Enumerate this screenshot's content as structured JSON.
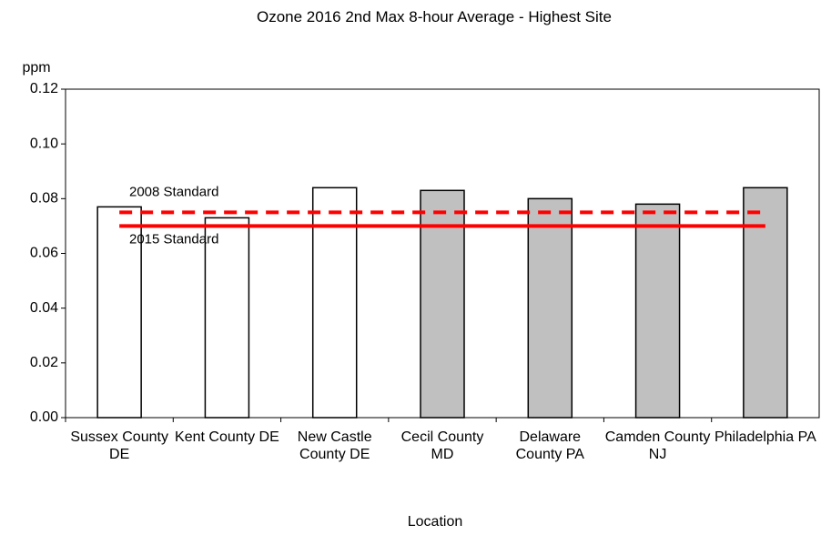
{
  "chart_data": {
    "type": "bar",
    "title": "Ozone 2016 2nd Max 8-hour Average - Highest Site",
    "y_axis_label": "ppm",
    "x_axis_label": "Location",
    "categories": [
      "Sussex County DE",
      "Kent County DE",
      "New Castle County DE",
      "Cecil County MD",
      "Delaware County PA",
      "Camden County NJ",
      "Philadelphia PA"
    ],
    "values": [
      0.077,
      0.073,
      0.084,
      0.083,
      0.08,
      0.078,
      0.084
    ],
    "colors": [
      "#ffffff",
      "#ffffff",
      "#ffffff",
      "#c0c0c0",
      "#c0c0c0",
      "#c0c0c0",
      "#c0c0c0"
    ],
    "ylim": [
      0,
      0.12
    ],
    "yticks": [
      {
        "value": 0,
        "label": "0.00"
      },
      0.02,
      0.04,
      0.06,
      0.08,
      {
        "value": 0.1,
        "label": "0.10"
      },
      0.12
    ],
    "grid": false,
    "reference_lines": [
      {
        "label": "2008 Standard",
        "value": 0.075,
        "style": "dashed",
        "color": "#ff0000"
      },
      {
        "label": "2015 Standard",
        "value": 0.07,
        "style": "solid",
        "color": "#ff0000"
      }
    ]
  }
}
